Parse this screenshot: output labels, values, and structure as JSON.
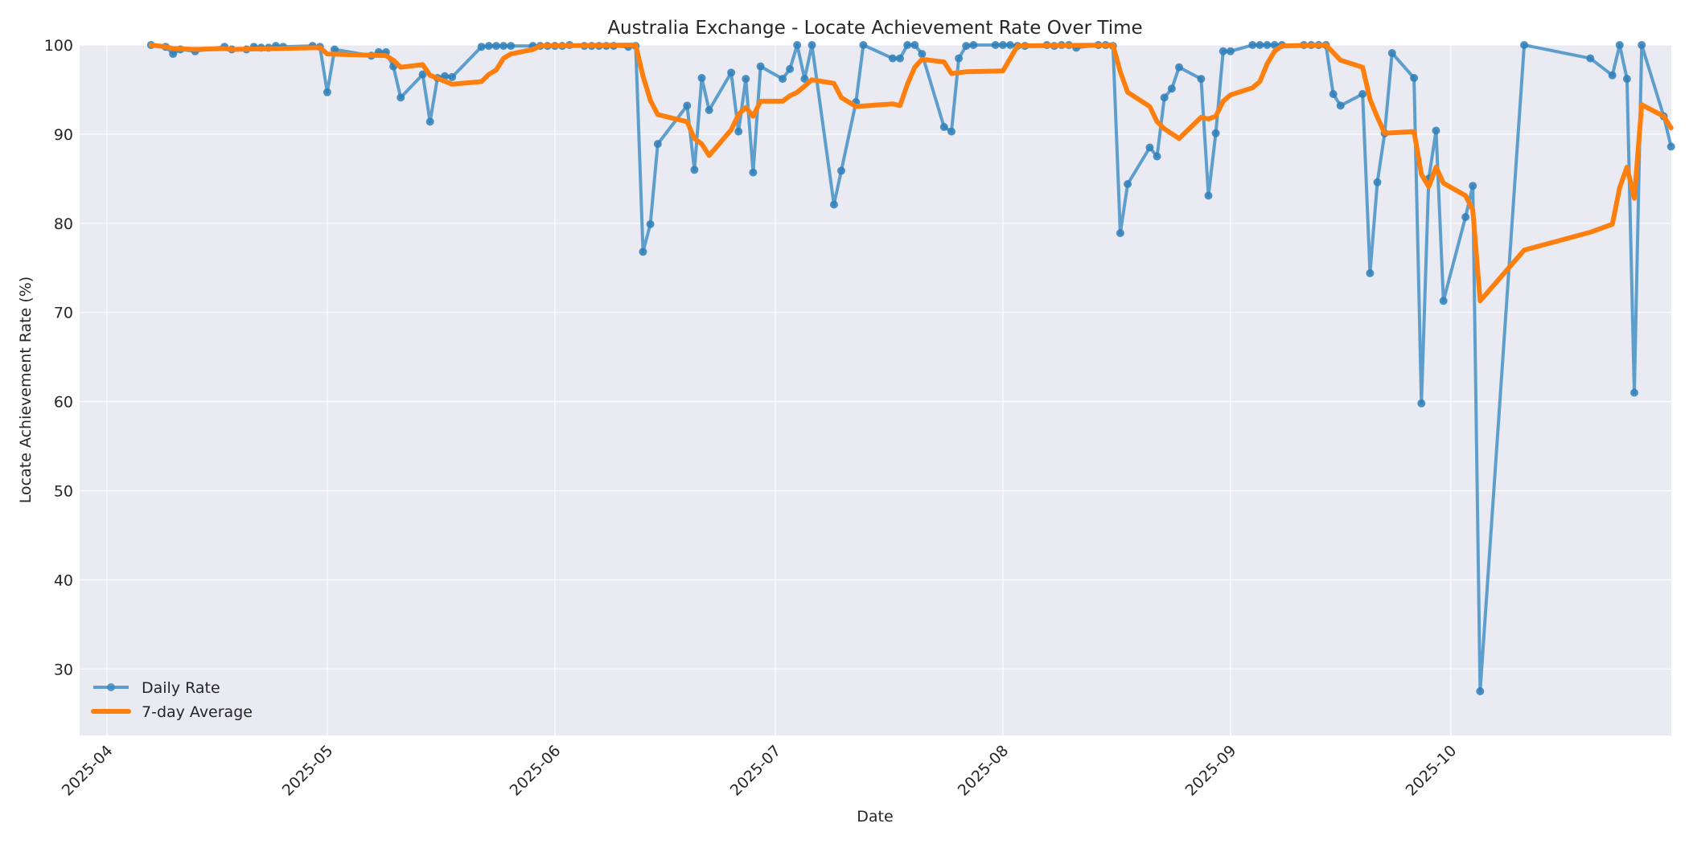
{
  "chart_data": {
    "type": "line",
    "title": "Australia Exchange - Locate Achievement Rate Over Time",
    "xlabel": "Date",
    "ylabel": "Locate Achievement Rate (%)",
    "ylim": [
      22.5,
      100
    ],
    "x_ticks": [
      "2025-04",
      "2025-05",
      "2025-06",
      "2025-07",
      "2025-08",
      "2025-09",
      "2025-10"
    ],
    "y_ticks": [
      30,
      40,
      50,
      60,
      70,
      80,
      90,
      100
    ],
    "grid": true,
    "legend_position": "lower left",
    "colors": {
      "daily": "#3b8bc2",
      "avg": "#ff7f0e",
      "plot_bg": "#eaeaf2",
      "grid": "#ffffff"
    },
    "series": [
      {
        "name": "Daily Rate",
        "style": "line+marker",
        "points": [
          [
            "2025-04-07",
            100.0
          ],
          [
            "2025-04-09",
            99.8
          ],
          [
            "2025-04-10",
            99.0
          ],
          [
            "2025-04-11",
            99.5
          ],
          [
            "2025-04-13",
            99.3
          ],
          [
            "2025-04-17",
            99.8
          ],
          [
            "2025-04-18",
            99.5
          ],
          [
            "2025-04-20",
            99.5
          ],
          [
            "2025-04-21",
            99.8
          ],
          [
            "2025-04-22",
            99.7
          ],
          [
            "2025-04-23",
            99.7
          ],
          [
            "2025-04-24",
            99.9
          ],
          [
            "2025-04-25",
            99.8
          ],
          [
            "2025-04-29",
            99.9
          ],
          [
            "2025-04-30",
            99.8
          ],
          [
            "2025-05-01",
            94.7
          ],
          [
            "2025-05-02",
            99.5
          ],
          [
            "2025-05-07",
            98.8
          ],
          [
            "2025-05-08",
            99.2
          ],
          [
            "2025-05-09",
            99.2
          ],
          [
            "2025-05-10",
            97.6
          ],
          [
            "2025-05-11",
            94.1
          ],
          [
            "2025-05-14",
            96.7
          ],
          [
            "2025-05-15",
            91.4
          ],
          [
            "2025-05-16",
            96.3
          ],
          [
            "2025-05-17",
            96.5
          ],
          [
            "2025-05-18",
            96.4
          ],
          [
            "2025-05-22",
            99.8
          ],
          [
            "2025-05-23",
            99.9
          ],
          [
            "2025-05-24",
            99.9
          ],
          [
            "2025-05-25",
            99.9
          ],
          [
            "2025-05-26",
            99.9
          ],
          [
            "2025-05-29",
            99.9
          ],
          [
            "2025-05-30",
            99.9
          ],
          [
            "2025-05-31",
            99.9
          ],
          [
            "2025-06-01",
            99.9
          ],
          [
            "2025-06-02",
            99.9
          ],
          [
            "2025-06-03",
            100.0
          ],
          [
            "2025-06-05",
            99.9
          ],
          [
            "2025-06-06",
            99.9
          ],
          [
            "2025-06-07",
            99.9
          ],
          [
            "2025-06-08",
            99.9
          ],
          [
            "2025-06-09",
            99.9
          ],
          [
            "2025-06-11",
            99.8
          ],
          [
            "2025-06-12",
            99.9
          ],
          [
            "2025-06-13",
            76.8
          ],
          [
            "2025-06-14",
            79.9
          ],
          [
            "2025-06-15",
            88.9
          ],
          [
            "2025-06-19",
            93.2
          ],
          [
            "2025-06-20",
            86.0
          ],
          [
            "2025-06-21",
            96.3
          ],
          [
            "2025-06-22",
            92.7
          ],
          [
            "2025-06-25",
            96.9
          ],
          [
            "2025-06-26",
            90.3
          ],
          [
            "2025-06-27",
            96.2
          ],
          [
            "2025-06-28",
            85.7
          ],
          [
            "2025-06-29",
            97.6
          ],
          [
            "2025-07-02",
            96.2
          ],
          [
            "2025-07-03",
            97.3
          ],
          [
            "2025-07-04",
            100.0
          ],
          [
            "2025-07-05",
            96.2
          ],
          [
            "2025-07-06",
            100.0
          ],
          [
            "2025-07-09",
            82.1
          ],
          [
            "2025-07-10",
            85.9
          ],
          [
            "2025-07-12",
            93.6
          ],
          [
            "2025-07-13",
            100.0
          ],
          [
            "2025-07-17",
            98.5
          ],
          [
            "2025-07-18",
            98.5
          ],
          [
            "2025-07-19",
            100.0
          ],
          [
            "2025-07-20",
            100.0
          ],
          [
            "2025-07-21",
            99.0
          ],
          [
            "2025-07-24",
            90.8
          ],
          [
            "2025-07-25",
            90.3
          ],
          [
            "2025-07-26",
            98.5
          ],
          [
            "2025-07-27",
            99.9
          ],
          [
            "2025-07-28",
            100.0
          ],
          [
            "2025-07-31",
            100.0
          ],
          [
            "2025-08-01",
            100.0
          ],
          [
            "2025-08-02",
            100.0
          ],
          [
            "2025-08-03",
            99.9
          ],
          [
            "2025-08-04",
            99.9
          ],
          [
            "2025-08-07",
            100.0
          ],
          [
            "2025-08-08",
            99.9
          ],
          [
            "2025-08-09",
            100.0
          ],
          [
            "2025-08-10",
            100.0
          ],
          [
            "2025-08-11",
            99.7
          ],
          [
            "2025-08-14",
            100.0
          ],
          [
            "2025-08-15",
            100.0
          ],
          [
            "2025-08-16",
            99.9
          ],
          [
            "2025-08-17",
            78.9
          ],
          [
            "2025-08-18",
            84.4
          ],
          [
            "2025-08-21",
            88.5
          ],
          [
            "2025-08-22",
            87.5
          ],
          [
            "2025-08-23",
            94.1
          ],
          [
            "2025-08-24",
            95.1
          ],
          [
            "2025-08-25",
            97.5
          ],
          [
            "2025-08-28",
            96.2
          ],
          [
            "2025-08-29",
            83.1
          ],
          [
            "2025-08-30",
            90.1
          ],
          [
            "2025-08-31",
            99.3
          ],
          [
            "2025-09-01",
            99.3
          ],
          [
            "2025-09-04",
            100.0
          ],
          [
            "2025-09-05",
            100.0
          ],
          [
            "2025-09-06",
            100.0
          ],
          [
            "2025-09-07",
            100.0
          ],
          [
            "2025-09-08",
            100.0
          ],
          [
            "2025-09-11",
            100.0
          ],
          [
            "2025-09-12",
            100.0
          ],
          [
            "2025-09-13",
            100.0
          ],
          [
            "2025-09-14",
            100.0
          ],
          [
            "2025-09-15",
            94.5
          ],
          [
            "2025-09-16",
            93.2
          ],
          [
            "2025-09-19",
            94.5
          ],
          [
            "2025-09-20",
            74.4
          ],
          [
            "2025-09-21",
            84.6
          ],
          [
            "2025-09-22",
            90.1
          ],
          [
            "2025-09-23",
            99.1
          ],
          [
            "2025-09-26",
            96.3
          ],
          [
            "2025-09-27",
            59.8
          ],
          [
            "2025-09-28",
            85.0
          ],
          [
            "2025-09-29",
            90.4
          ],
          [
            "2025-09-30",
            71.3
          ],
          [
            "2025-10-03",
            80.7
          ],
          [
            "2025-10-04",
            84.2
          ],
          [
            "2025-10-05",
            27.5
          ],
          [
            "2025-10-11",
            100.0
          ],
          [
            "2025-10-20",
            98.5
          ],
          [
            "2025-10-23",
            96.6
          ],
          [
            "2025-10-24",
            100.0
          ],
          [
            "2025-10-25",
            96.2
          ],
          [
            "2025-10-26",
            61.0
          ],
          [
            "2025-10-27",
            100.0
          ],
          [
            "2025-10-30",
            92.0
          ],
          [
            "2025-10-31",
            88.6
          ]
        ]
      },
      {
        "name": "7-day Average",
        "style": "line",
        "points": [
          [
            "2025-04-07",
            100.0
          ],
          [
            "2025-04-09",
            99.8
          ],
          [
            "2025-04-10",
            99.6
          ],
          [
            "2025-04-13",
            99.5
          ],
          [
            "2025-04-17",
            99.6
          ],
          [
            "2025-04-18",
            99.5
          ],
          [
            "2025-04-30",
            99.7
          ],
          [
            "2025-05-01",
            99.0
          ],
          [
            "2025-05-09",
            98.8
          ],
          [
            "2025-05-10",
            98.3
          ],
          [
            "2025-05-11",
            97.5
          ],
          [
            "2025-05-14",
            97.8
          ],
          [
            "2025-05-15",
            96.6
          ],
          [
            "2025-05-18",
            95.6
          ],
          [
            "2025-05-22",
            95.9
          ],
          [
            "2025-05-23",
            96.7
          ],
          [
            "2025-05-24",
            97.2
          ],
          [
            "2025-05-25",
            98.5
          ],
          [
            "2025-05-26",
            99.0
          ],
          [
            "2025-05-29",
            99.5
          ],
          [
            "2025-05-30",
            99.9
          ],
          [
            "2025-06-12",
            100.0
          ],
          [
            "2025-06-13",
            96.5
          ],
          [
            "2025-06-14",
            93.8
          ],
          [
            "2025-06-15",
            92.2
          ],
          [
            "2025-06-19",
            91.4
          ],
          [
            "2025-06-20",
            89.5
          ],
          [
            "2025-06-21",
            88.9
          ],
          [
            "2025-06-22",
            87.6
          ],
          [
            "2025-06-25",
            90.5
          ],
          [
            "2025-06-26",
            92.2
          ],
          [
            "2025-06-27",
            93.0
          ],
          [
            "2025-06-28",
            92.0
          ],
          [
            "2025-06-29",
            93.7
          ],
          [
            "2025-07-02",
            93.7
          ],
          [
            "2025-07-03",
            94.3
          ],
          [
            "2025-07-04",
            94.7
          ],
          [
            "2025-07-05",
            95.4
          ],
          [
            "2025-07-06",
            96.1
          ],
          [
            "2025-07-09",
            95.7
          ],
          [
            "2025-07-10",
            94.1
          ],
          [
            "2025-07-12",
            93.1
          ],
          [
            "2025-07-17",
            93.4
          ],
          [
            "2025-07-18",
            93.2
          ],
          [
            "2025-07-19",
            95.6
          ],
          [
            "2025-07-20",
            97.5
          ],
          [
            "2025-07-21",
            98.4
          ],
          [
            "2025-07-24",
            98.1
          ],
          [
            "2025-07-25",
            96.8
          ],
          [
            "2025-07-27",
            97.0
          ],
          [
            "2025-08-01",
            97.1
          ],
          [
            "2025-08-02",
            98.5
          ],
          [
            "2025-08-03",
            99.9
          ],
          [
            "2025-08-16",
            100.0
          ],
          [
            "2025-08-17",
            97.0
          ],
          [
            "2025-08-18",
            94.7
          ],
          [
            "2025-08-21",
            93.1
          ],
          [
            "2025-08-22",
            91.4
          ],
          [
            "2025-08-23",
            90.6
          ],
          [
            "2025-08-25",
            89.5
          ],
          [
            "2025-08-28",
            91.9
          ],
          [
            "2025-08-29",
            91.7
          ],
          [
            "2025-08-30",
            92.0
          ],
          [
            "2025-08-31",
            93.7
          ],
          [
            "2025-09-01",
            94.4
          ],
          [
            "2025-09-04",
            95.2
          ],
          [
            "2025-09-05",
            95.9
          ],
          [
            "2025-09-06",
            97.9
          ],
          [
            "2025-09-07",
            99.3
          ],
          [
            "2025-09-08",
            99.9
          ],
          [
            "2025-09-14",
            100.0
          ],
          [
            "2025-09-16",
            98.3
          ],
          [
            "2025-09-19",
            97.5
          ],
          [
            "2025-09-20",
            93.9
          ],
          [
            "2025-09-21",
            91.9
          ],
          [
            "2025-09-22",
            90.1
          ],
          [
            "2025-09-26",
            90.3
          ],
          [
            "2025-09-27",
            85.5
          ],
          [
            "2025-09-28",
            84.1
          ],
          [
            "2025-09-29",
            86.3
          ],
          [
            "2025-09-30",
            84.5
          ],
          [
            "2025-10-03",
            83.1
          ],
          [
            "2025-10-04",
            81.5
          ],
          [
            "2025-10-05",
            71.3
          ],
          [
            "2025-10-11",
            77.0
          ],
          [
            "2025-10-20",
            79.0
          ],
          [
            "2025-10-23",
            79.9
          ],
          [
            "2025-10-24",
            84.0
          ],
          [
            "2025-10-25",
            86.3
          ],
          [
            "2025-10-26",
            82.8
          ],
          [
            "2025-10-27",
            93.3
          ],
          [
            "2025-10-30",
            92.0
          ],
          [
            "2025-10-31",
            90.7
          ]
        ]
      }
    ]
  }
}
